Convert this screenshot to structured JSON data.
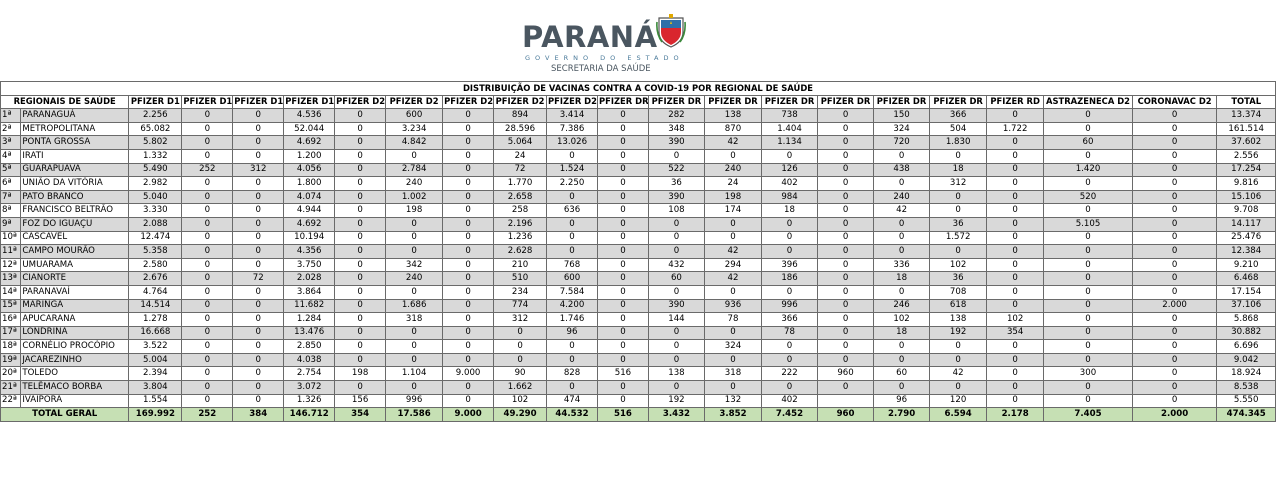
{
  "header": {
    "logo_word": "PARANÁ",
    "logo_sub1": "GOVERNO DO ESTADO",
    "logo_sub2": "SECRETARIA DA SAÚDE"
  },
  "table": {
    "title": "DISTRIBUIÇÃO DE VACINAS CONTRA A COVID-19 POR REGIONAL DE SAÚDE",
    "region_header": "REGIONAIS DE SAÚDE",
    "columns": [
      "PFIZER D1",
      "PFIZER D1",
      "PFIZER D1",
      "PFIZER D1",
      "PFIZER D2",
      "PFIZER D2",
      "PFIZER D2",
      "PFIZER D2",
      "PFIZER D2",
      "PFIZER DR",
      "PFIZER DR",
      "PFIZER DR",
      "PFIZER DR",
      "PFIZER DR",
      "PFIZER DR",
      "PFIZER DR",
      "PFIZER RD",
      "ASTRAZENECA D2",
      "CORONAVAC D2",
      "TOTAL"
    ],
    "rows": [
      {
        "ord": "1ª",
        "name": "PARANAGUÁ",
        "values": [
          "2.256",
          "0",
          "0",
          "4.536",
          "0",
          "600",
          "0",
          "894",
          "3.414",
          "0",
          "282",
          "138",
          "738",
          "0",
          "150",
          "366",
          "0",
          "0",
          "0",
          "13.374"
        ]
      },
      {
        "ord": "2ª",
        "name": "METROPOLITANA",
        "values": [
          "65.082",
          "0",
          "0",
          "52.044",
          "0",
          "3.234",
          "0",
          "28.596",
          "7.386",
          "0",
          "348",
          "870",
          "1.404",
          "0",
          "324",
          "504",
          "1.722",
          "0",
          "0",
          "161.514"
        ]
      },
      {
        "ord": "3ª",
        "name": "PONTA GROSSA",
        "values": [
          "5.802",
          "0",
          "0",
          "4.692",
          "0",
          "4.842",
          "0",
          "5.064",
          "13.026",
          "0",
          "390",
          "42",
          "1.134",
          "0",
          "720",
          "1.830",
          "0",
          "60",
          "0",
          "37.602"
        ]
      },
      {
        "ord": "4ª",
        "name": "IRATI",
        "values": [
          "1.332",
          "0",
          "0",
          "1.200",
          "0",
          "0",
          "0",
          "24",
          "0",
          "0",
          "0",
          "0",
          "0",
          "0",
          "0",
          "0",
          "0",
          "0",
          "0",
          "2.556"
        ]
      },
      {
        "ord": "5ª",
        "name": "GUARAPUAVA",
        "values": [
          "5.490",
          "252",
          "312",
          "4.056",
          "0",
          "2.784",
          "0",
          "72",
          "1.524",
          "0",
          "522",
          "240",
          "126",
          "0",
          "438",
          "18",
          "0",
          "1.420",
          "0",
          "17.254"
        ]
      },
      {
        "ord": "6ª",
        "name": "UNIÃO DA VITÓRIA",
        "values": [
          "2.982",
          "0",
          "0",
          "1.800",
          "0",
          "240",
          "0",
          "1.770",
          "2.250",
          "0",
          "36",
          "24",
          "402",
          "0",
          "0",
          "312",
          "0",
          "0",
          "0",
          "9.816"
        ]
      },
      {
        "ord": "7ª",
        "name": "PATO BRANCO",
        "values": [
          "5.040",
          "0",
          "0",
          "4.074",
          "0",
          "1.002",
          "0",
          "2.658",
          "0",
          "0",
          "390",
          "198",
          "984",
          "0",
          "240",
          "0",
          "0",
          "520",
          "0",
          "15.106"
        ]
      },
      {
        "ord": "8ª",
        "name": "FRANCISCO BELTRÃO",
        "values": [
          "3.330",
          "0",
          "0",
          "4.944",
          "0",
          "198",
          "0",
          "258",
          "636",
          "0",
          "108",
          "174",
          "18",
          "0",
          "42",
          "0",
          "0",
          "0",
          "0",
          "9.708"
        ]
      },
      {
        "ord": "9ª",
        "name": "FOZ DO IGUAÇU",
        "values": [
          "2.088",
          "0",
          "0",
          "4.692",
          "0",
          "0",
          "0",
          "2.196",
          "0",
          "0",
          "0",
          "0",
          "0",
          "0",
          "0",
          "36",
          "0",
          "5.105",
          "0",
          "14.117"
        ]
      },
      {
        "ord": "10ª",
        "name": "CASCAVEL",
        "values": [
          "12.474",
          "0",
          "0",
          "10.194",
          "0",
          "0",
          "0",
          "1.236",
          "0",
          "0",
          "0",
          "0",
          "0",
          "0",
          "0",
          "1.572",
          "0",
          "0",
          "0",
          "25.476"
        ]
      },
      {
        "ord": "11ª",
        "name": "CAMPO MOURÃO",
        "values": [
          "5.358",
          "0",
          "0",
          "4.356",
          "0",
          "0",
          "0",
          "2.628",
          "0",
          "0",
          "0",
          "42",
          "0",
          "0",
          "0",
          "0",
          "0",
          "0",
          "0",
          "12.384"
        ]
      },
      {
        "ord": "12ª",
        "name": "UMUARAMA",
        "values": [
          "2.580",
          "0",
          "0",
          "3.750",
          "0",
          "342",
          "0",
          "210",
          "768",
          "0",
          "432",
          "294",
          "396",
          "0",
          "336",
          "102",
          "0",
          "0",
          "0",
          "9.210"
        ]
      },
      {
        "ord": "13ª",
        "name": "CIANORTE",
        "values": [
          "2.676",
          "0",
          "72",
          "2.028",
          "0",
          "240",
          "0",
          "510",
          "600",
          "0",
          "60",
          "42",
          "186",
          "0",
          "18",
          "36",
          "0",
          "0",
          "0",
          "6.468"
        ]
      },
      {
        "ord": "14ª",
        "name": "PARANAVAÍ",
        "values": [
          "4.764",
          "0",
          "0",
          "3.864",
          "0",
          "0",
          "0",
          "234",
          "7.584",
          "0",
          "0",
          "0",
          "0",
          "0",
          "0",
          "708",
          "0",
          "0",
          "0",
          "17.154"
        ]
      },
      {
        "ord": "15ª",
        "name": "MARINGÁ",
        "values": [
          "14.514",
          "0",
          "0",
          "11.682",
          "0",
          "1.686",
          "0",
          "774",
          "4.200",
          "0",
          "390",
          "936",
          "996",
          "0",
          "246",
          "618",
          "0",
          "0",
          "2.000",
          "37.106"
        ]
      },
      {
        "ord": "16ª",
        "name": "APUCARANA",
        "values": [
          "1.278",
          "0",
          "0",
          "1.284",
          "0",
          "318",
          "0",
          "312",
          "1.746",
          "0",
          "144",
          "78",
          "366",
          "0",
          "102",
          "138",
          "102",
          "0",
          "0",
          "5.868"
        ]
      },
      {
        "ord": "17ª",
        "name": "LONDRINA",
        "values": [
          "16.668",
          "0",
          "0",
          "13.476",
          "0",
          "0",
          "0",
          "0",
          "96",
          "0",
          "0",
          "0",
          "78",
          "0",
          "18",
          "192",
          "354",
          "0",
          "0",
          "30.882"
        ]
      },
      {
        "ord": "18ª",
        "name": "CORNÉLIO PROCÓPIO",
        "values": [
          "3.522",
          "0",
          "0",
          "2.850",
          "0",
          "0",
          "0",
          "0",
          "0",
          "0",
          "0",
          "324",
          "0",
          "0",
          "0",
          "0",
          "0",
          "0",
          "0",
          "6.696"
        ]
      },
      {
        "ord": "19ª",
        "name": "JACAREZINHO",
        "values": [
          "5.004",
          "0",
          "0",
          "4.038",
          "0",
          "0",
          "0",
          "0",
          "0",
          "0",
          "0",
          "0",
          "0",
          "0",
          "0",
          "0",
          "0",
          "0",
          "0",
          "9.042"
        ]
      },
      {
        "ord": "20ª",
        "name": "TOLEDO",
        "values": [
          "2.394",
          "0",
          "0",
          "2.754",
          "198",
          "1.104",
          "9.000",
          "90",
          "828",
          "516",
          "138",
          "318",
          "222",
          "960",
          "60",
          "42",
          "0",
          "300",
          "0",
          "18.924"
        ]
      },
      {
        "ord": "21ª",
        "name": "TELÊMACO BORBA",
        "values": [
          "3.804",
          "0",
          "0",
          "3.072",
          "0",
          "0",
          "0",
          "1.662",
          "0",
          "0",
          "0",
          "0",
          "0",
          "0",
          "0",
          "0",
          "0",
          "0",
          "0",
          "8.538"
        ]
      },
      {
        "ord": "22ª",
        "name": "IVAIPORÃ",
        "values": [
          "1.554",
          "0",
          "0",
          "1.326",
          "156",
          "996",
          "0",
          "102",
          "474",
          "0",
          "192",
          "132",
          "402",
          "",
          "96",
          "120",
          "0",
          "0",
          "0",
          "5.550"
        ]
      }
    ],
    "total": {
      "label": "TOTAL GERAL",
      "values": [
        "169.992",
        "252",
        "384",
        "146.712",
        "354",
        "17.586",
        "9.000",
        "49.290",
        "44.532",
        "516",
        "3.432",
        "3.852",
        "7.452",
        "960",
        "2.790",
        "6.594",
        "2.178",
        "7.405",
        "2.000",
        "474.345"
      ]
    }
  }
}
